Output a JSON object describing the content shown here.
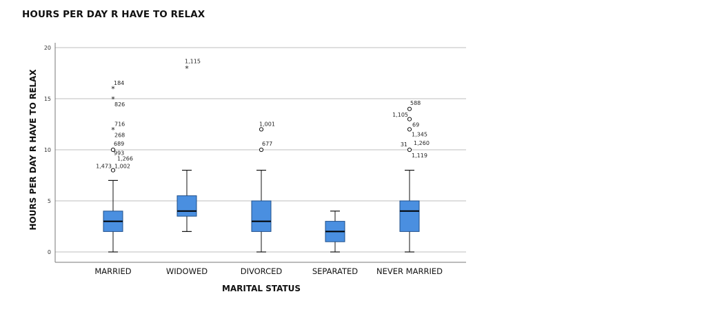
{
  "chart_data": {
    "type": "boxplot",
    "title": "HOURS PER DAY R HAVE TO RELAX",
    "xlabel": "MARITAL STATUS",
    "ylabel": "HOURS PER DAY R HAVE TO RELAX",
    "ylim": [
      0,
      20
    ],
    "yticks": [
      "0",
      "5",
      "10",
      "15",
      "20"
    ],
    "ytick_values": [
      0,
      5,
      10,
      15,
      20
    ],
    "grid": true,
    "box_color": "#4a8fe0",
    "categories": [
      "MARRIED",
      "WIDOWED",
      "DIVORCED",
      "SEPARATED",
      "NEVER MARRIED"
    ],
    "boxes": [
      {
        "min": 0,
        "q1": 2,
        "median": 3,
        "q3": 4,
        "max": 7,
        "outliers": [
          {
            "value": 8,
            "marker": "circle",
            "labels": [
              "1,473",
              "1,002",
              "1,266",
              "993"
            ]
          },
          {
            "value": 10,
            "marker": "circle",
            "labels": [
              "689"
            ]
          },
          {
            "value": 12,
            "marker": "star",
            "labels": [
              "716",
              "268"
            ]
          },
          {
            "value": 15,
            "marker": "star",
            "labels": [
              "826"
            ]
          },
          {
            "value": 16,
            "marker": "star",
            "labels": [
              "184"
            ]
          }
        ]
      },
      {
        "min": 2,
        "q1": 3.5,
        "median": 4,
        "q3": 5.5,
        "max": 8,
        "outliers": [
          {
            "value": 18,
            "marker": "star",
            "labels": [
              "1,115"
            ]
          }
        ]
      },
      {
        "min": 0,
        "q1": 2,
        "median": 3,
        "q3": 5,
        "max": 8,
        "outliers": [
          {
            "value": 10,
            "marker": "circle",
            "labels": [
              "677"
            ]
          },
          {
            "value": 12,
            "marker": "circle",
            "labels": [
              "1,001"
            ]
          }
        ]
      },
      {
        "min": 0,
        "q1": 1,
        "median": 2,
        "q3": 3,
        "max": 4,
        "outliers": []
      },
      {
        "min": 0,
        "q1": 2,
        "median": 4,
        "q3": 5,
        "max": 8,
        "outliers": [
          {
            "value": 10,
            "marker": "circle",
            "labels": [
              "31",
              "1,260",
              "1,119"
            ]
          },
          {
            "value": 12,
            "marker": "circle",
            "labels": [
              "1,345"
            ]
          },
          {
            "value": 13,
            "marker": "circle",
            "labels": [
              "69"
            ]
          },
          {
            "value": 14,
            "marker": "circle",
            "labels": [
              "588",
              "1,105"
            ]
          }
        ]
      }
    ]
  }
}
